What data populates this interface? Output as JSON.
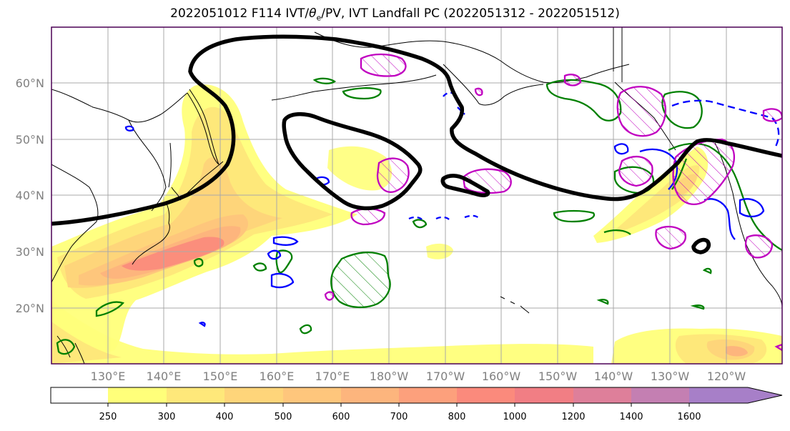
{
  "title_main": "2022051012 F114 IVT/",
  "title_theta": "θ",
  "title_theta_sub": "e",
  "title_rest": "/PV, IVT Landfall PC (2022051312 - 2022051512)",
  "lat_labels": [
    "60°N",
    "50°N",
    "40°N",
    "30°N",
    "20°N"
  ],
  "lon_labels": [
    "130°E",
    "140°E",
    "150°E",
    "160°E",
    "170°E",
    "180°W",
    "170°W",
    "160°W",
    "150°W",
    "140°W",
    "130°W",
    "120°W"
  ],
  "colorbar": {
    "ticks": [
      "250",
      "300",
      "400",
      "500",
      "600",
      "700",
      "800",
      "1000",
      "1200",
      "1400",
      "1600"
    ],
    "colors": [
      "#ffff7a",
      "#fee87a",
      "#fed57a",
      "#fec67c",
      "#fdb57d",
      "#fda07c",
      "#fb8a7c",
      "#f17e84",
      "#de7f9a",
      "#c47fb2",
      "#a77fc8"
    ],
    "extend": "max"
  },
  "colors": {
    "pv_contour": "#000000",
    "theta_e_green": "#008000",
    "theta_e_blue": "#0000ff",
    "theta_e_magenta": "#c000c0",
    "coastline": "#000000",
    "grid": "#a9a9a9"
  }
}
